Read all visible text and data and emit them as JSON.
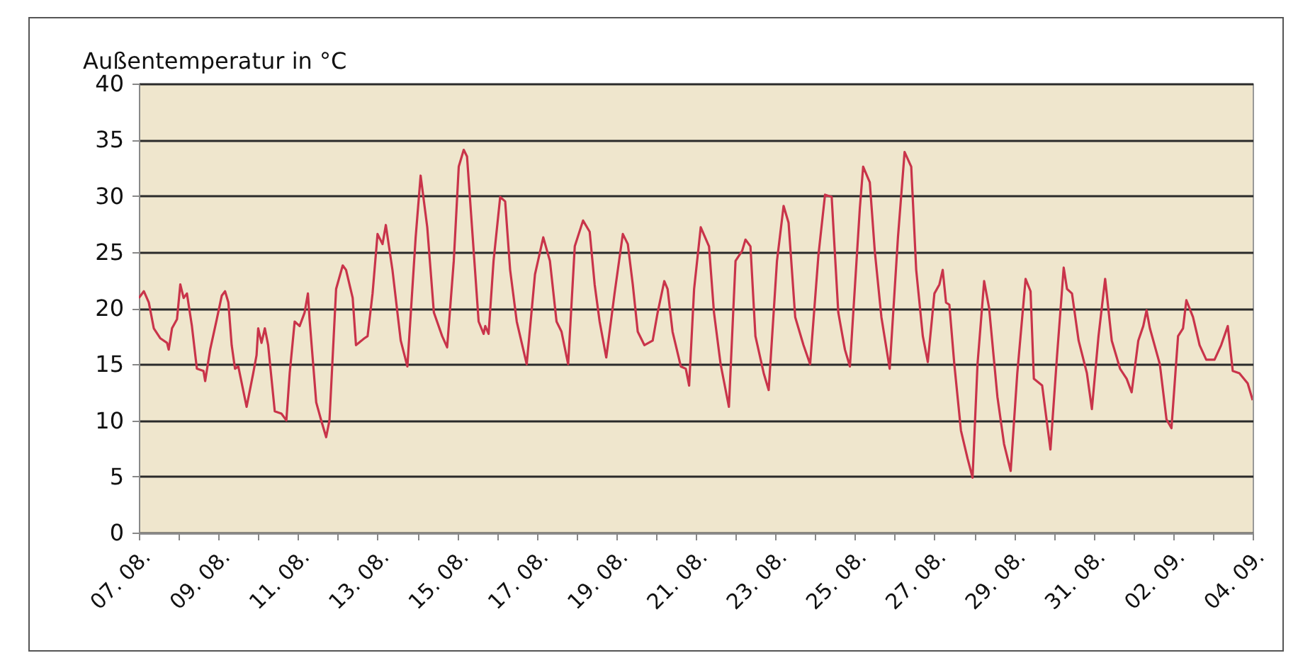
{
  "chart_data": {
    "type": "line",
    "ylabel": "Außentemperatur in °C",
    "x": [
      "--08-07T00:00",
      "--08-07T03:00",
      "--08-07T06:00",
      "--08-07T09:00",
      "--08-07T13:00",
      "--08-07T17:00",
      "--08-07T18:00",
      "--08-07T20:00",
      "--08-07T23:00",
      "--08-08T01:00",
      "--08-08T03:00",
      "--08-08T05:00",
      "--08-08T08:00",
      "--08-08T11:00",
      "--08-08T15:00",
      "--08-08T16:00",
      "--08-08T19:00",
      "--08-08T23:00",
      "--08-09T02:00",
      "--08-09T04:00",
      "--08-09T06:00",
      "--08-09T08:00",
      "--08-09T10:00",
      "--08-09T12:00",
      "--08-09T17:00",
      "--08-09T21:00",
      "--08-09T23:00",
      "--08-10T00:00",
      "--08-10T02:00",
      "--08-10T04:00",
      "--08-10T06:00",
      "--08-10T10:00",
      "--08-10T14:00",
      "--08-10T17:00",
      "--08-10T19:00",
      "--08-10T22:00",
      "--08-11T01:00",
      "--08-11T04:00",
      "--08-11T06:00",
      "--08-11T07:00",
      "--08-11T11:00",
      "--08-11T14:00",
      "--08-11T17:00",
      "--08-11T19:00",
      "--08-11T23:00",
      "--08-12T03:00",
      "--08-12T05:00",
      "--08-12T09:00",
      "--08-12T11:00",
      "--08-12T16:00",
      "--08-12T18:00",
      "--08-12T21:00",
      "--08-13T00:00",
      "--08-13T03:00",
      "--08-13T05:00",
      "--08-13T09:00",
      "--08-13T12:00",
      "--08-13T14:00",
      "--08-13T18:00",
      "--08-13T23:00",
      "--08-14T02:00",
      "--08-14T06:00",
      "--08-14T10:00",
      "--08-14T15:00",
      "--08-14T18:00",
      "--08-14T22:00",
      "--08-15T01:00",
      "--08-15T04:00",
      "--08-15T06:00",
      "--08-15T09:00",
      "--08-15T13:00",
      "--08-15T16:00",
      "--08-15T17:00",
      "--08-15T19:00",
      "--08-15T22:00",
      "--08-16T02:00",
      "--08-16T05:00",
      "--08-16T08:00",
      "--08-16T12:00",
      "--08-16T18:00",
      "--08-16T23:00",
      "--08-17T04:00",
      "--08-17T08:00",
      "--08-17T12:00",
      "--08-17T15:00",
      "--08-17T19:00",
      "--08-17T23:00",
      "--08-18T04:00",
      "--08-18T08:00",
      "--08-18T11:00",
      "--08-18T14:00",
      "--08-18T18:00",
      "--08-18T23:00",
      "--08-19T04:00",
      "--08-19T07:00",
      "--08-19T10:00",
      "--08-19T13:00",
      "--08-19T17:00",
      "--08-19T22:00",
      "--08-20T01:00",
      "--08-20T05:00",
      "--08-20T07:00",
      "--08-20T10:00",
      "--08-20T15:00",
      "--08-20T18:00",
      "--08-20T20:00",
      "--08-20T23:00",
      "--08-21T03:00",
      "--08-21T08:00",
      "--08-21T11:00",
      "--08-21T15:00",
      "--08-21T20:00",
      "--08-22T00:00",
      "--08-22T04:00",
      "--08-22T06:00",
      "--08-22T09:00",
      "--08-22T12:00",
      "--08-22T17:00",
      "--08-22T20:00",
      "--08-23T01:00",
      "--08-23T05:00",
      "--08-23T08:00",
      "--08-23T12:00",
      "--08-23T17:00",
      "--08-23T21:00",
      "--08-24T02:00",
      "--08-24T06:00",
      "--08-24T10:00",
      "--08-24T14:00",
      "--08-24T18:00",
      "--08-24T21:00",
      "--08-25T03:00",
      "--08-25T05:00",
      "--08-25T09:00",
      "--08-25T12:00",
      "--08-25T16:00",
      "--08-25T21:00",
      "--08-26T02:00",
      "--08-26T06:00",
      "--08-26T10:00",
      "--08-26T13:00",
      "--08-26T17:00",
      "--08-26T20:00",
      "--08-27T00:00",
      "--08-27T03:00",
      "--08-27T05:00",
      "--08-27T07:00",
      "--08-27T09:00",
      "--08-27T12:00",
      "--08-27T16:00",
      "--08-27T20:00",
      "--08-27T23:00",
      "--08-28T02:00",
      "--08-28T06:00",
      "--08-28T09:00",
      "--08-28T14:00",
      "--08-28T18:00",
      "--08-28T22:00",
      "--08-29T02:00",
      "--08-29T07:00",
      "--08-29T10:00",
      "--08-29T12:00",
      "--08-29T17:00",
      "--08-29T22:00",
      "--08-30T02:00",
      "--08-30T06:00",
      "--08-30T08:00",
      "--08-30T11:00",
      "--08-30T15:00",
      "--08-30T20:00",
      "--08-30T23:00",
      "--08-31T03:00",
      "--08-31T07:00",
      "--08-31T11:00",
      "--08-31T16:00",
      "--08-31T20:00",
      "--08-31T23:00",
      "--09-01T03:00",
      "--09-01T06:00",
      "--09-01T08:00",
      "--09-01T10:00",
      "--09-01T16:00",
      "--09-01T20:00",
      "--09-01T23:00",
      "--09-02T03:00",
      "--09-02T06:00",
      "--09-02T08:00",
      "--09-02T12:00",
      "--09-02T16:00",
      "--09-02T20:00",
      "--09-03T01:00",
      "--09-03T05:00",
      "--09-03T09:00",
      "--09-03T12:00",
      "--09-03T16:00",
      "--09-03T21:00",
      "--09-04T00:00"
    ],
    "series": [
      {
        "color": "#c9344a",
        "values": [
          20.9,
          21.5,
          20.5,
          18.2,
          17.3,
          16.9,
          16.3,
          18.2,
          19,
          22.1,
          20.9,
          21.3,
          18.4,
          14.6,
          14.4,
          13.5,
          16.3,
          19,
          21.1,
          21.5,
          20.5,
          16.7,
          14.6,
          14.8,
          11.2,
          14.2,
          15.8,
          18.2,
          16.9,
          18.2,
          16.7,
          10.8,
          10.6,
          10,
          14.2,
          18.8,
          18.4,
          19.6,
          21.3,
          19,
          11.6,
          10,
          8.5,
          10,
          21.7,
          23.8,
          23.4,
          20.9,
          16.7,
          17.3,
          17.5,
          21.3,
          26.6,
          25.7,
          27.4,
          23.4,
          19.6,
          17.1,
          14.8,
          26.3,
          31.8,
          27.2,
          19.6,
          17.5,
          16.5,
          24.2,
          32.6,
          34.1,
          33.5,
          27.2,
          18.8,
          17.7,
          18.4,
          17.7,
          24.2,
          29.9,
          29.5,
          23.4,
          18.8,
          15,
          23,
          26.3,
          24.2,
          18.8,
          17.9,
          15,
          25.5,
          27.8,
          26.8,
          22.1,
          18.8,
          15.6,
          21.3,
          26.6,
          25.7,
          22.1,
          17.9,
          16.7,
          17.1,
          19.6,
          22.4,
          21.7,
          17.9,
          14.8,
          14.6,
          13.1,
          21.7,
          27.2,
          25.5,
          19.6,
          15,
          11.2,
          24.2,
          25.1,
          26.1,
          25.5,
          17.5,
          14.2,
          12.7,
          24.2,
          29.1,
          27.6,
          19.2,
          16.7,
          15,
          24.7,
          30.1,
          29.9,
          19.6,
          16.3,
          14.8,
          28.9,
          32.6,
          31.2,
          25.1,
          19.2,
          14.6,
          26.3,
          33.9,
          32.6,
          23.4,
          17.5,
          15.2,
          21.3,
          22.1,
          23.4,
          20.5,
          20.3,
          15,
          9.1,
          6.6,
          4.9,
          15,
          22.4,
          20,
          12.1,
          7.9,
          5.5,
          14.2,
          22.6,
          21.5,
          13.7,
          13.1,
          7.4,
          15.8,
          23.6,
          21.7,
          21.3,
          17.1,
          14.2,
          11,
          17.5,
          22.6,
          17.1,
          14.6,
          13.7,
          12.5,
          17.1,
          18.4,
          19.8,
          18.2,
          15,
          10.1,
          9.3,
          17.5,
          18.2,
          20.7,
          19.2,
          16.7,
          15.4,
          15.4,
          16.7,
          18.4,
          14.4,
          14.2,
          13.3,
          11.8
        ]
      }
    ],
    "xlim": [
      "--08-07",
      "--09-04"
    ],
    "xticks": [
      {
        "value": "--08-07",
        "label": "07. 08."
      },
      {
        "value": "--08-08",
        "label": null
      },
      {
        "value": "--08-09",
        "label": "09. 08."
      },
      {
        "value": "--08-10",
        "label": null
      },
      {
        "value": "--08-11",
        "label": "11. 08."
      },
      {
        "value": "--08-12",
        "label": null
      },
      {
        "value": "--08-13",
        "label": "13. 08."
      },
      {
        "value": "--08-14",
        "label": null
      },
      {
        "value": "--08-15",
        "label": "15. 08."
      },
      {
        "value": "--08-16",
        "label": null
      },
      {
        "value": "--08-17",
        "label": "17. 08."
      },
      {
        "value": "--08-18",
        "label": null
      },
      {
        "value": "--08-19",
        "label": "19. 08."
      },
      {
        "value": "--08-20",
        "label": null
      },
      {
        "value": "--08-21",
        "label": "21. 08."
      },
      {
        "value": "--08-22",
        "label": null
      },
      {
        "value": "--08-23",
        "label": "23. 08."
      },
      {
        "value": "--08-24",
        "label": null
      },
      {
        "value": "--08-25",
        "label": "25. 08."
      },
      {
        "value": "--08-26",
        "label": null
      },
      {
        "value": "--08-27",
        "label": "27. 08."
      },
      {
        "value": "--08-28",
        "label": null
      },
      {
        "value": "--08-29",
        "label": "29. 08."
      },
      {
        "value": "--08-30",
        "label": null
      },
      {
        "value": "--08-31",
        "label": "31. 08."
      },
      {
        "value": "--09-01",
        "label": null
      },
      {
        "value": "--09-02",
        "label": "02. 09."
      },
      {
        "value": "--09-03",
        "label": null
      },
      {
        "value": "--09-04",
        "label": "04. 09."
      }
    ],
    "ylim": [
      0,
      40
    ],
    "yticks": [
      0,
      5,
      10,
      15,
      20,
      25,
      30,
      35,
      40
    ],
    "grid": "y",
    "marker": "none",
    "line_style": "solid"
  }
}
